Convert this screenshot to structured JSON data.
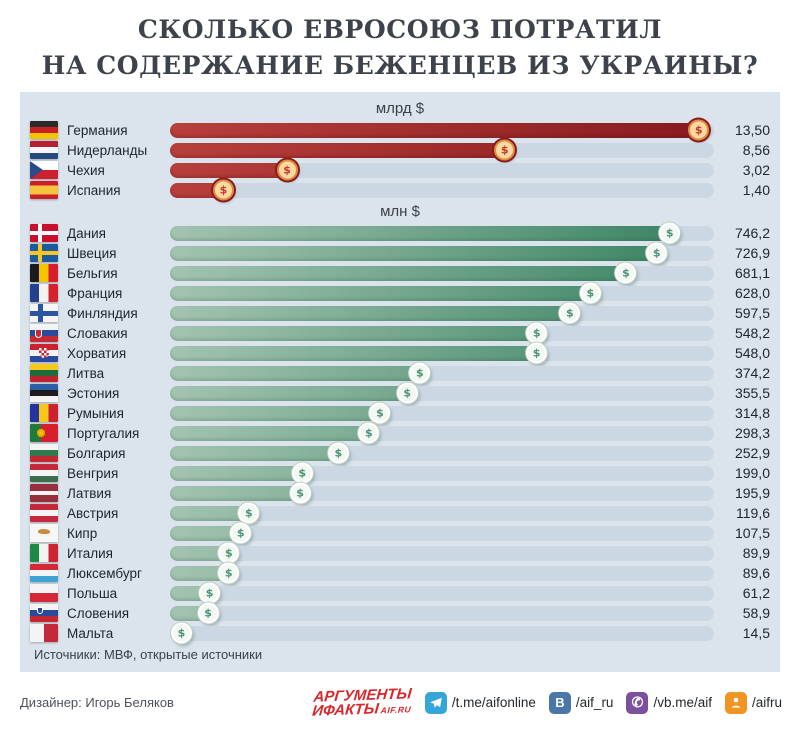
{
  "title": {
    "line1": "СКОЛЬКО ЕВРОСОЮЗ ПОТРАТИЛ",
    "line2": "НА СОДЕРЖАНИЕ БЕЖЕНЦЕВ ИЗ УКРАИНЫ?"
  },
  "chart_data": {
    "type": "bar",
    "orientation": "horizontal",
    "title": "СКОЛЬКО ЕВРОСОЮЗ ПОТРАТИЛ НА СОДЕРЖАНИЕ БЕЖЕНЦЕВ ИЗ УКРАИНЫ?",
    "grid": false,
    "legend_position": "none",
    "coin_symbol": "$",
    "sections": [
      {
        "unit_label": "млрд $",
        "palette": "red",
        "track_max": 13.85,
        "rows": [
          {
            "country": "Германия",
            "flag": "de",
            "value": 13.5,
            "value_label": "13,50"
          },
          {
            "country": "Нидерланды",
            "flag": "nl",
            "value": 8.56,
            "value_label": "8,56"
          },
          {
            "country": "Чехия",
            "flag": "cz",
            "value": 3.02,
            "value_label": "3,02"
          },
          {
            "country": "Испания",
            "flag": "es",
            "value": 1.4,
            "value_label": "1,40"
          }
        ]
      },
      {
        "unit_label": "млн $",
        "palette": "green",
        "track_max": 810,
        "rows": [
          {
            "country": "Дания",
            "flag": "dk",
            "value": 746.2,
            "value_label": "746,2"
          },
          {
            "country": "Швеция",
            "flag": "se",
            "value": 726.9,
            "value_label": "726,9"
          },
          {
            "country": "Бельгия",
            "flag": "be",
            "value": 681.1,
            "value_label": "681,1"
          },
          {
            "country": "Франция",
            "flag": "fr",
            "value": 628.0,
            "value_label": "628,0"
          },
          {
            "country": "Финляндия",
            "flag": "fi",
            "value": 597.5,
            "value_label": "597,5"
          },
          {
            "country": "Словакия",
            "flag": "sk",
            "value": 548.2,
            "value_label": "548,2"
          },
          {
            "country": "Хорватия",
            "flag": "hr",
            "value": 548.0,
            "value_label": "548,0"
          },
          {
            "country": "Литва",
            "flag": "lt",
            "value": 374.2,
            "value_label": "374,2"
          },
          {
            "country": "Эстония",
            "flag": "ee",
            "value": 355.5,
            "value_label": "355,5"
          },
          {
            "country": "Румыния",
            "flag": "ro",
            "value": 314.8,
            "value_label": "314,8"
          },
          {
            "country": "Португалия",
            "flag": "pt",
            "value": 298.3,
            "value_label": "298,3"
          },
          {
            "country": "Болгария",
            "flag": "bg",
            "value": 252.9,
            "value_label": "252,9"
          },
          {
            "country": "Венгрия",
            "flag": "hu",
            "value": 199.0,
            "value_label": "199,0"
          },
          {
            "country": "Латвия",
            "flag": "lv",
            "value": 195.9,
            "value_label": "195,9"
          },
          {
            "country": "Австрия",
            "flag": "at",
            "value": 119.6,
            "value_label": "119,6"
          },
          {
            "country": "Кипр",
            "flag": "cy",
            "value": 107.5,
            "value_label": "107,5"
          },
          {
            "country": "Италия",
            "flag": "it",
            "value": 89.9,
            "value_label": "89,9"
          },
          {
            "country": "Люксембург",
            "flag": "lu",
            "value": 89.6,
            "value_label": "89,6"
          },
          {
            "country": "Польша",
            "flag": "pl",
            "value": 61.2,
            "value_label": "61,2"
          },
          {
            "country": "Словения",
            "flag": "si",
            "value": 58.9,
            "value_label": "58,9"
          },
          {
            "country": "Мальта",
            "flag": "mt",
            "value": 14.5,
            "value_label": "14,5"
          }
        ]
      }
    ],
    "source_note": "Источники: МВФ, открытые источники"
  },
  "footer": {
    "designer": "Дизайнер: Игорь Беляков",
    "brand": {
      "line1": "АРГУМЕНТЫ",
      "line2": "ИФАКТЫ",
      "suffix": "AIF.RU"
    },
    "socials": [
      {
        "network": "telegram",
        "handle": "/t.me/aifonline",
        "color": "#36a6d9"
      },
      {
        "network": "vk",
        "handle": "/aif_ru",
        "color": "#4a76a8"
      },
      {
        "network": "viber",
        "handle": "/vb.me/aif",
        "color": "#7b519d"
      },
      {
        "network": "ok",
        "handle": "/aifru",
        "color": "#f29422"
      }
    ]
  },
  "colors": {
    "panel_bg": "#dbe4ed",
    "track": "#cbd8e3",
    "red_bar_start": "#b8403c",
    "red_bar_end": "#871a1e",
    "green_bar_start": "#a3c4b1",
    "green_bar_end": "#35805f",
    "red_coin_fill": "#fcd9a2",
    "red_coin_border": "#dd8f3f",
    "title_text": "#3e434b",
    "brand_red": "#d8262b"
  }
}
